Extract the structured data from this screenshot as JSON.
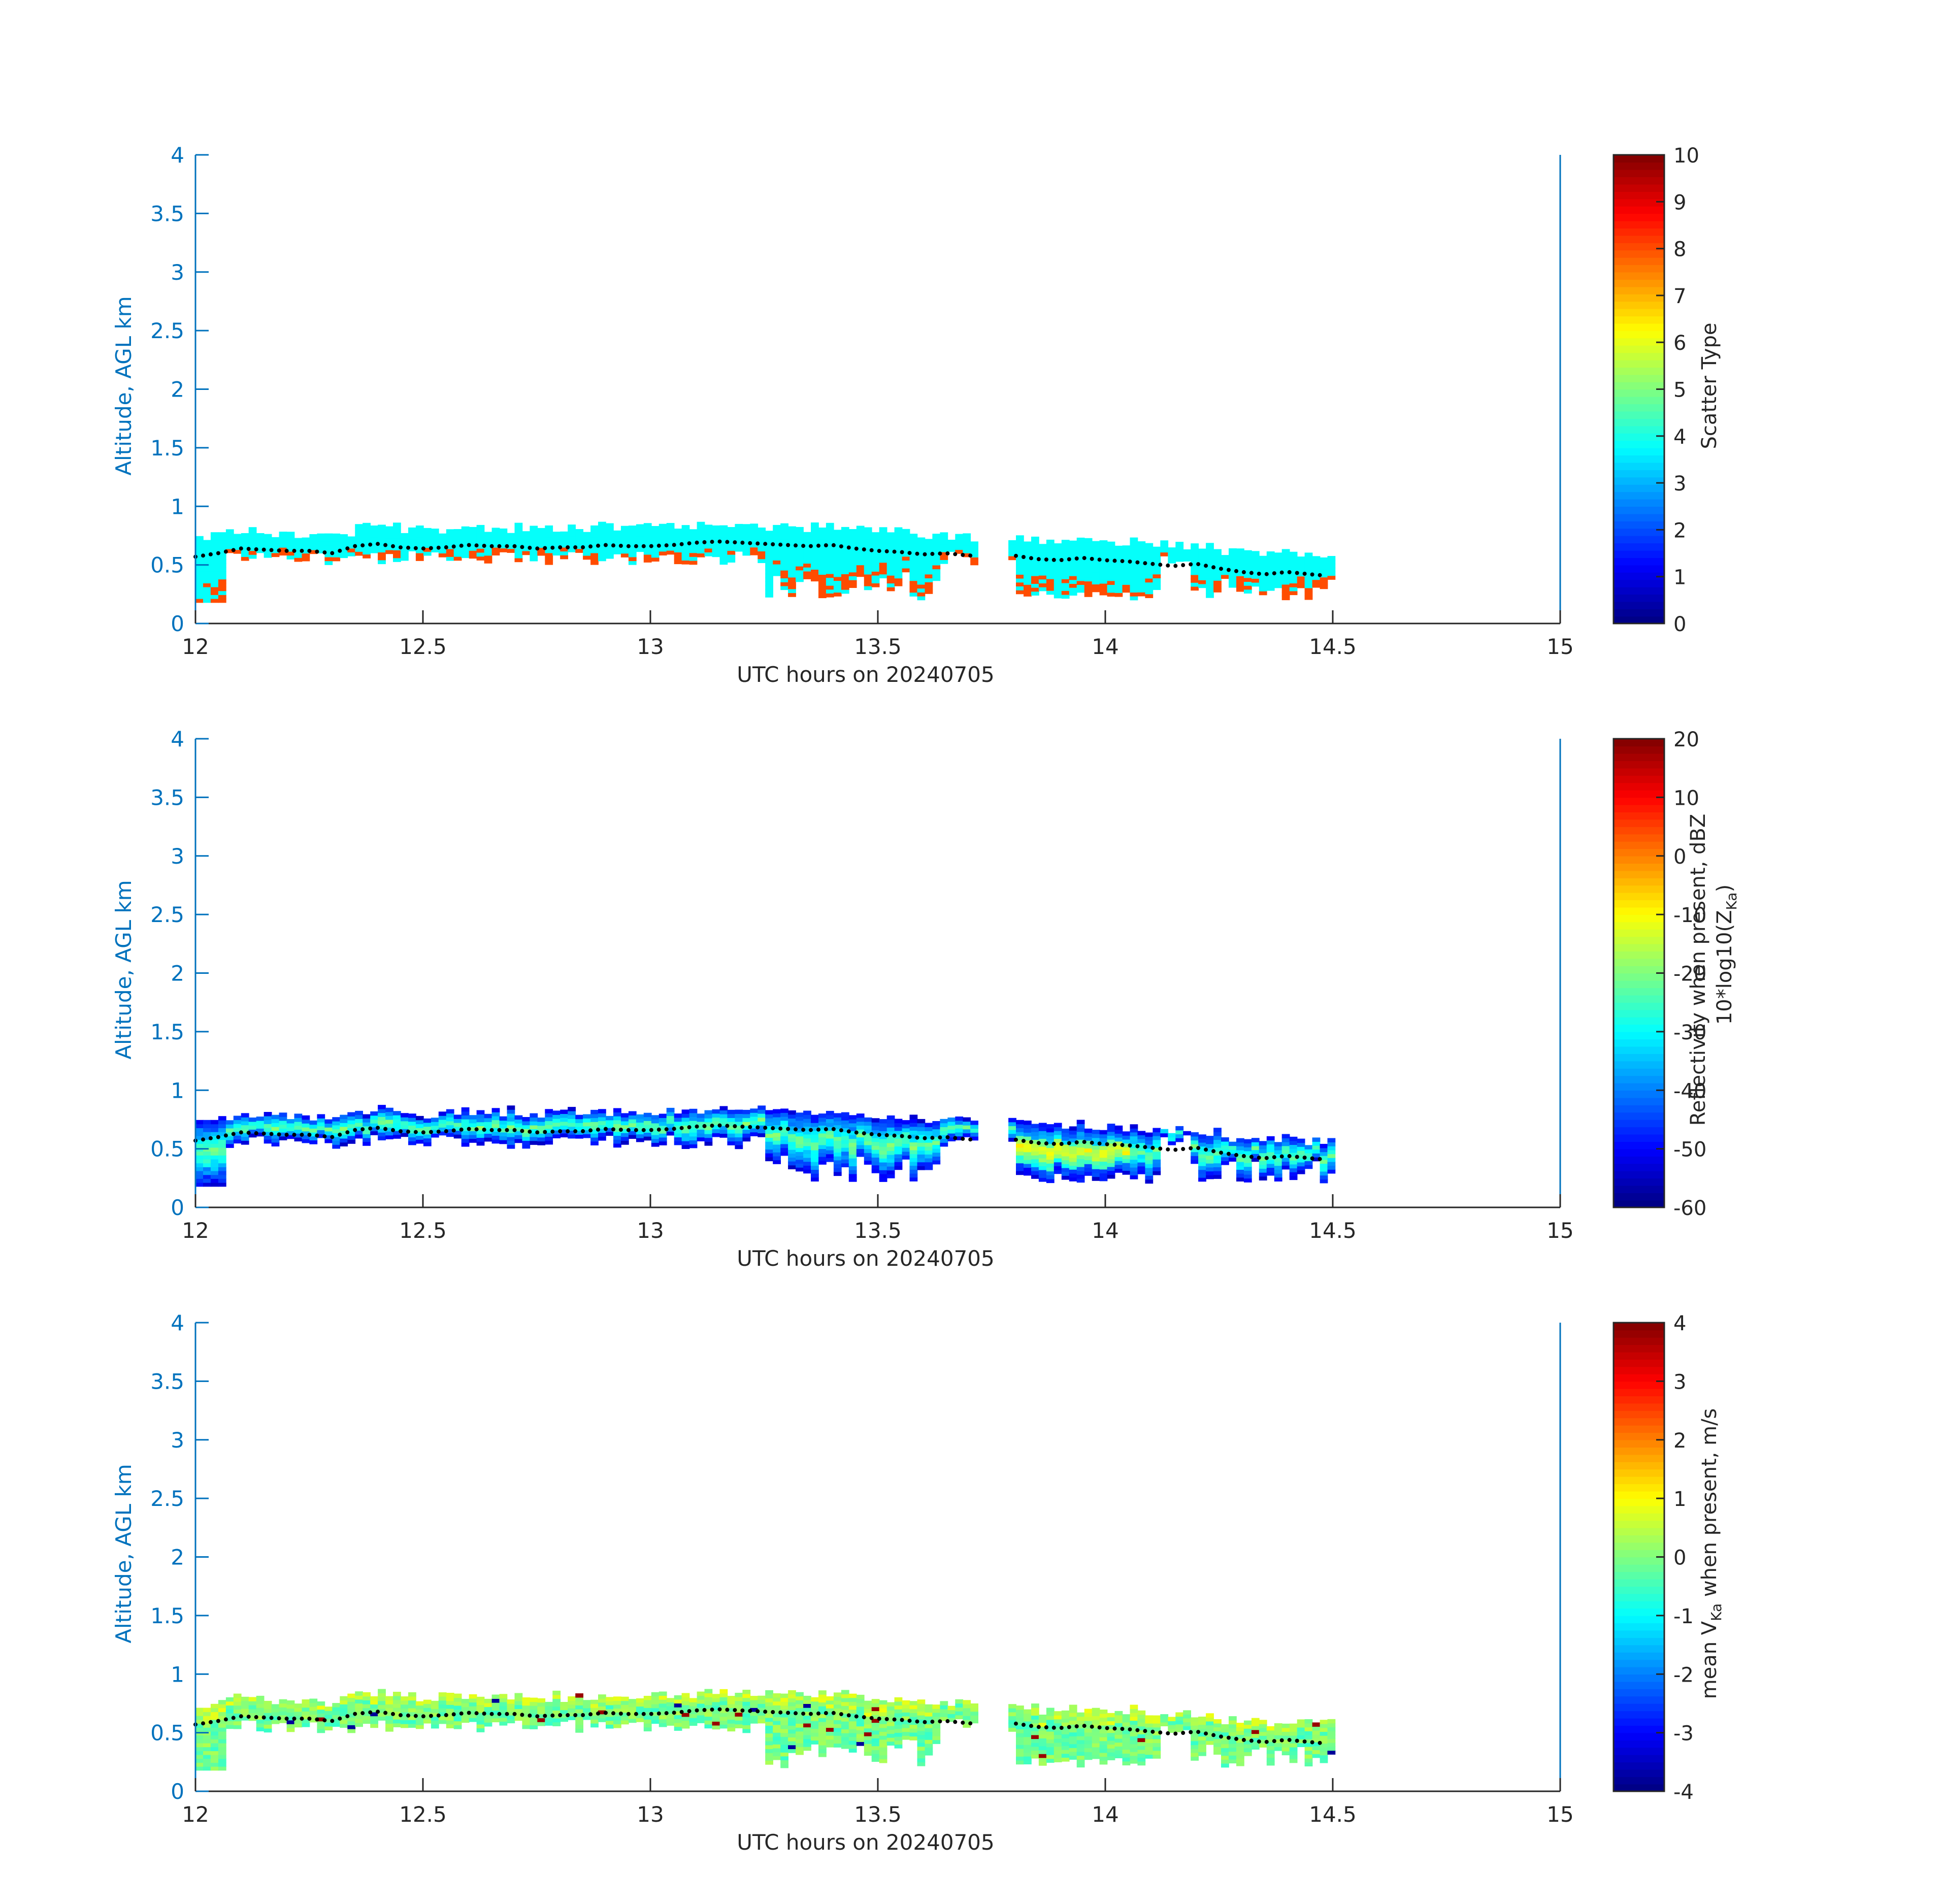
{
  "chart_data": [
    {
      "type": "heatmap",
      "xlabel": "UTC hours on 20240705",
      "ylabel": "Altitude, AGL km",
      "xlim": [
        12,
        15
      ],
      "ylim": [
        0,
        4
      ],
      "xticks": [
        "12",
        "12.5",
        "13",
        "13.5",
        "14",
        "14.5",
        "15"
      ],
      "yticks": [
        "0",
        "0.5",
        "1",
        "1.5",
        "2",
        "2.5",
        "3",
        "3.5",
        "4"
      ],
      "colorbar": {
        "colormap": "jet",
        "label": "Scatter Type",
        "label_sub": "",
        "label_line2": "",
        "clim": [
          0,
          10
        ],
        "ticks": [
          "0",
          "1",
          "2",
          "3",
          "4",
          "5",
          "6",
          "7",
          "8",
          "9",
          "10"
        ]
      },
      "cloud_base_hint": "cloud layer between ~0.2 and ~0.8 km from 12.0 to 14.5 UTC with gap near 13.72-13.78",
      "field": "scatter_type"
    },
    {
      "type": "heatmap",
      "xlabel": "UTC hours on 20240705",
      "ylabel": "Altitude, AGL km",
      "xlim": [
        12,
        15
      ],
      "ylim": [
        0,
        4
      ],
      "xticks": [
        "12",
        "12.5",
        "13",
        "13.5",
        "14",
        "14.5",
        "15"
      ],
      "yticks": [
        "0",
        "0.5",
        "1",
        "1.5",
        "2",
        "2.5",
        "3",
        "3.5",
        "4"
      ],
      "colorbar": {
        "colormap": "jet",
        "label": "Reflectivity when present, dBZ",
        "label_line2": "10*log10(Z",
        "label_sub": "Ka",
        "label_end": ")",
        "clim": [
          -60,
          20
        ],
        "ticks": [
          "-60",
          "-50",
          "-40",
          "-30",
          "-20",
          "-10",
          "0",
          "10",
          "20"
        ]
      },
      "field": "reflectivity"
    },
    {
      "type": "heatmap",
      "xlabel": "UTC hours on 20240705",
      "ylabel": "Altitude, AGL km",
      "xlim": [
        12,
        15
      ],
      "ylim": [
        0,
        4
      ],
      "xticks": [
        "12",
        "12.5",
        "13",
        "13.5",
        "14",
        "14.5",
        "15"
      ],
      "yticks": [
        "0",
        "0.5",
        "1",
        "1.5",
        "2",
        "2.5",
        "3",
        "3.5",
        "4"
      ],
      "colorbar": {
        "colormap": "jet",
        "label": "mean V",
        "label_sub": "Ka",
        "label_end": " when present, m/s",
        "clim": [
          -4,
          4
        ],
        "ticks": [
          "-4",
          "-3",
          "-2",
          "-1",
          "0",
          "1",
          "2",
          "3",
          "4"
        ]
      },
      "field": "velocity"
    }
  ],
  "cloud_top_line": {
    "x": [
      12.0,
      12.05,
      12.1,
      12.15,
      12.2,
      12.25,
      12.3,
      12.35,
      12.4,
      12.45,
      12.5,
      12.55,
      12.6,
      12.65,
      12.7,
      12.75,
      12.8,
      12.85,
      12.9,
      12.95,
      13.0,
      13.05,
      13.1,
      13.15,
      13.2,
      13.25,
      13.3,
      13.35,
      13.4,
      13.45,
      13.5,
      13.55,
      13.6,
      13.65,
      13.7,
      13.8,
      13.85,
      13.9,
      13.95,
      14.0,
      14.05,
      14.1,
      14.15,
      14.2,
      14.25,
      14.3,
      14.35,
      14.4,
      14.45,
      14.48
    ],
    "y": [
      0.57,
      0.6,
      0.64,
      0.63,
      0.62,
      0.62,
      0.6,
      0.66,
      0.68,
      0.65,
      0.64,
      0.65,
      0.67,
      0.66,
      0.66,
      0.64,
      0.65,
      0.65,
      0.67,
      0.66,
      0.66,
      0.67,
      0.69,
      0.7,
      0.69,
      0.68,
      0.67,
      0.66,
      0.67,
      0.64,
      0.62,
      0.61,
      0.59,
      0.6,
      0.58,
      0.58,
      0.55,
      0.54,
      0.56,
      0.54,
      0.53,
      0.51,
      0.49,
      0.51,
      0.47,
      0.44,
      0.42,
      0.44,
      0.42,
      0.41
    ]
  }
}
